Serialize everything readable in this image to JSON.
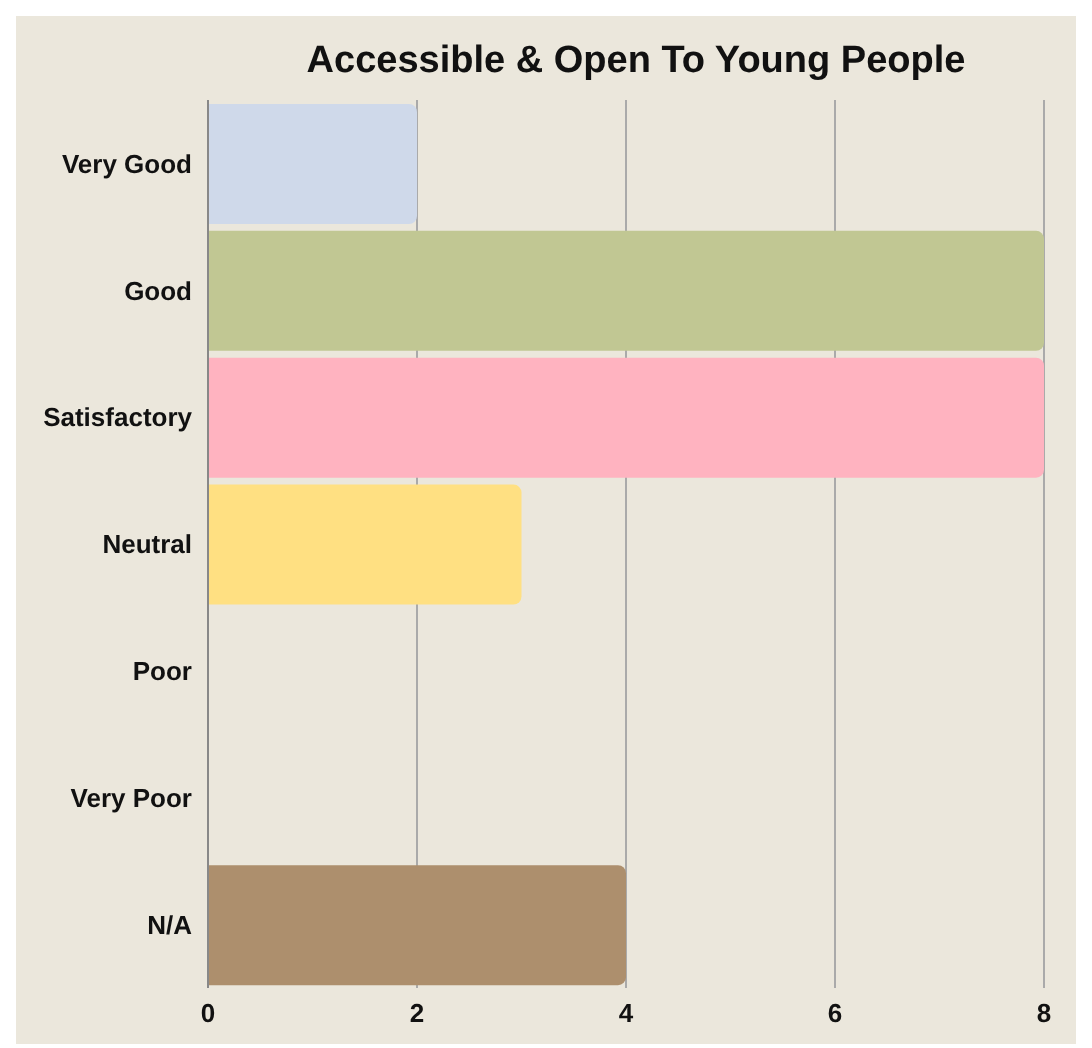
{
  "chart_data": {
    "type": "bar",
    "orientation": "horizontal",
    "title": "Accessible & Open To Young People",
    "categories": [
      "Very Good",
      "Good",
      "Satisfactory",
      "Neutral",
      "Poor",
      "Very Poor",
      "N/A"
    ],
    "values": [
      2,
      8,
      8,
      3,
      0,
      0,
      4
    ],
    "colors": [
      "#cfd9ea",
      "#c1c793",
      "#ffb3c0",
      "#ffe082",
      null,
      null,
      "#ad8f6d"
    ],
    "xlim": [
      0,
      8
    ],
    "xticks": [
      0,
      2,
      4,
      6,
      8
    ],
    "grid": "x",
    "legend": false
  }
}
